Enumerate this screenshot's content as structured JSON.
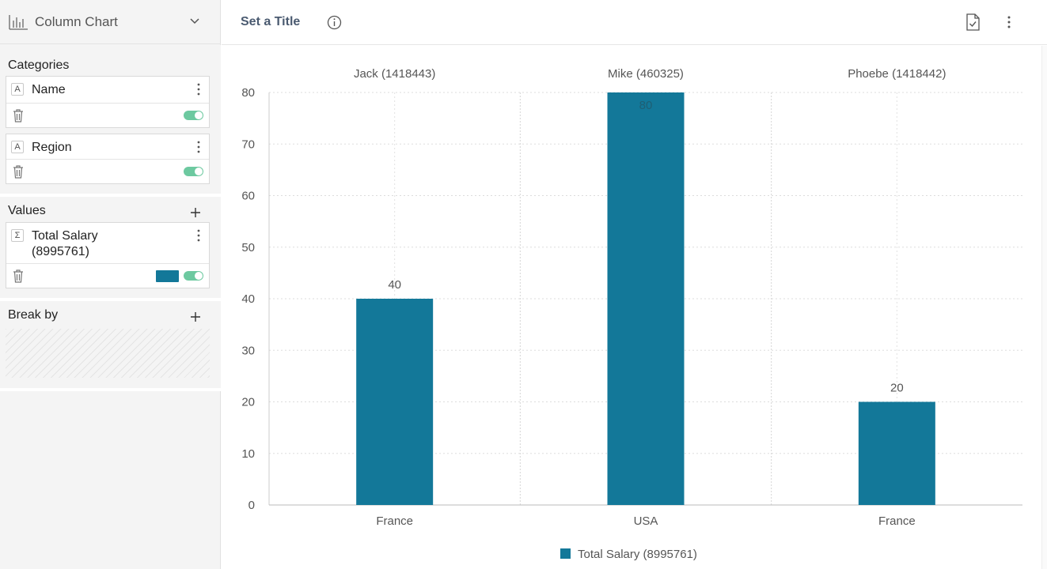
{
  "sidebar": {
    "chart_type": {
      "label": "Column Chart",
      "icon": "column-chart-icon"
    },
    "categories": {
      "title": "Categories",
      "fields": [
        {
          "type": "A",
          "name": "Name"
        },
        {
          "type": "A",
          "name": "Region"
        }
      ]
    },
    "values": {
      "title": "Values",
      "fields": [
        {
          "type": "Σ",
          "name_line1": "Total Salary",
          "name_line2": "(8995761)",
          "color": "#137899"
        }
      ]
    },
    "break_by": {
      "title": "Break by"
    }
  },
  "header": {
    "title": "Set a Title"
  },
  "chart_data": {
    "type": "bar",
    "groups": [
      "Jack (1418443)",
      "Mike (460325)",
      "Phoebe (1418442)"
    ],
    "categories": [
      "France",
      "USA",
      "France"
    ],
    "series": [
      {
        "name": "Total Salary (8995761)",
        "values": [
          40,
          80,
          20
        ],
        "color": "#137899"
      }
    ],
    "data_labels": [
      "40",
      "80",
      "20"
    ],
    "yticks": [
      "0",
      "10",
      "20",
      "30",
      "40",
      "50",
      "60",
      "70",
      "80"
    ],
    "ylim": [
      0,
      80
    ],
    "grid": true,
    "legend": "bottom"
  }
}
